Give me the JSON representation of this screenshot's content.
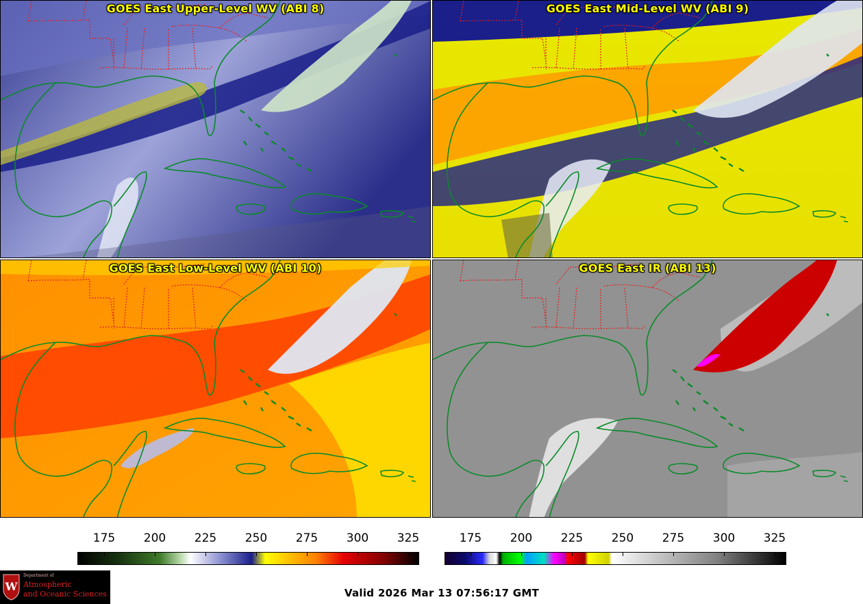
{
  "panels": [
    {
      "title": "GOES East Upper-Level WV (ABI 8)",
      "band": "ABI 8",
      "colormap": "water-vapor"
    },
    {
      "title": "GOES East Mid-Level WV (ABI 9)",
      "band": "ABI 9",
      "colormap": "water-vapor"
    },
    {
      "title": "GOES East Low-Level WV (ABI 10)",
      "band": "ABI 10",
      "colormap": "water-vapor"
    },
    {
      "title": "GOES East IR (ABI 13)",
      "band": "ABI 13",
      "colormap": "infrared"
    }
  ],
  "colorbars": {
    "wv": {
      "ticks": [
        "175",
        "200",
        "225",
        "250",
        "275",
        "300",
        "325"
      ]
    },
    "ir": {
      "ticks": [
        "175",
        "200",
        "225",
        "250",
        "275",
        "300",
        "325"
      ]
    }
  },
  "logo": {
    "line1": "Department of",
    "line2": "Atmospheric",
    "line3": "and Oceanic Sciences",
    "seal_letter": "W"
  },
  "valid_time": "Valid 2026 Mar 13 07:56:17 GMT",
  "colors": {
    "title": "#ffff00",
    "coastline": "#0a8a2a",
    "state_borders": "#e02020"
  }
}
